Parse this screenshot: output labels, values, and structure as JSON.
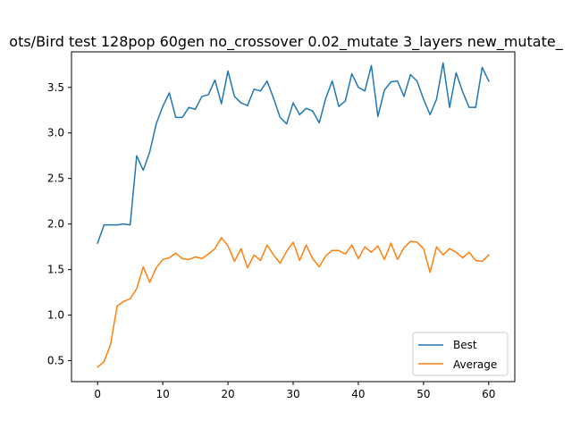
{
  "chart_data": {
    "type": "line",
    "title": "ots/Bird test 128pop 60gen no_crossover 0.02_mutate 3_layers new_mutate_",
    "xlabel": "",
    "ylabel": "",
    "xlim": [
      -4,
      64
    ],
    "ylim": [
      0.27,
      3.89
    ],
    "xticks": [
      0,
      10,
      20,
      30,
      40,
      50,
      60
    ],
    "yticks": [
      0.5,
      1.0,
      1.5,
      2.0,
      2.5,
      3.0,
      3.5
    ],
    "ytick_labels": [
      "0.5",
      "1.0",
      "1.5",
      "2.0",
      "2.5",
      "3.0",
      "3.5"
    ],
    "grid": false,
    "legend_position": "lower-right",
    "series": [
      {
        "name": "Best",
        "color": "#1f77b4",
        "x": [
          0,
          1,
          2,
          3,
          4,
          5,
          6,
          7,
          8,
          9,
          10,
          11,
          12,
          13,
          14,
          15,
          16,
          17,
          18,
          19,
          20,
          21,
          22,
          23,
          24,
          25,
          26,
          27,
          28,
          29,
          30,
          31,
          32,
          33,
          34,
          35,
          36,
          37,
          38,
          39,
          40,
          41,
          42,
          43,
          44,
          45,
          46,
          47,
          48,
          49,
          50,
          51,
          52,
          53,
          54,
          55,
          56,
          57,
          58,
          59,
          60
        ],
        "values": [
          1.79,
          1.99,
          1.99,
          1.99,
          2.0,
          1.99,
          2.75,
          2.59,
          2.79,
          3.1,
          3.29,
          3.44,
          3.17,
          3.17,
          3.28,
          3.26,
          3.4,
          3.42,
          3.58,
          3.32,
          3.68,
          3.4,
          3.33,
          3.3,
          3.48,
          3.46,
          3.57,
          3.38,
          3.17,
          3.1,
          3.33,
          3.2,
          3.27,
          3.24,
          3.11,
          3.38,
          3.57,
          3.29,
          3.35,
          3.65,
          3.5,
          3.46,
          3.74,
          3.18,
          3.47,
          3.56,
          3.57,
          3.4,
          3.64,
          3.57,
          3.37,
          3.2,
          3.37,
          3.77,
          3.28,
          3.66,
          3.45,
          3.28,
          3.28,
          3.72,
          3.57
        ]
      },
      {
        "name": "Average",
        "color": "#ff7f0e",
        "x": [
          0,
          1,
          2,
          3,
          4,
          5,
          6,
          7,
          8,
          9,
          10,
          11,
          12,
          13,
          14,
          15,
          16,
          17,
          18,
          19,
          20,
          21,
          22,
          23,
          24,
          25,
          26,
          27,
          28,
          29,
          30,
          31,
          32,
          33,
          34,
          35,
          36,
          37,
          38,
          39,
          40,
          41,
          42,
          43,
          44,
          45,
          46,
          47,
          48,
          49,
          50,
          51,
          52,
          53,
          54,
          55,
          56,
          57,
          58,
          59,
          60
        ],
        "values": [
          0.43,
          0.49,
          0.68,
          1.1,
          1.15,
          1.18,
          1.29,
          1.53,
          1.36,
          1.52,
          1.61,
          1.63,
          1.68,
          1.62,
          1.61,
          1.64,
          1.62,
          1.67,
          1.73,
          1.85,
          1.76,
          1.59,
          1.73,
          1.52,
          1.66,
          1.6,
          1.77,
          1.66,
          1.57,
          1.7,
          1.8,
          1.6,
          1.77,
          1.62,
          1.53,
          1.65,
          1.71,
          1.71,
          1.67,
          1.77,
          1.62,
          1.75,
          1.69,
          1.76,
          1.61,
          1.79,
          1.61,
          1.74,
          1.81,
          1.8,
          1.73,
          1.47,
          1.75,
          1.66,
          1.73,
          1.69,
          1.63,
          1.69,
          1.6,
          1.59,
          1.66
        ]
      }
    ]
  }
}
